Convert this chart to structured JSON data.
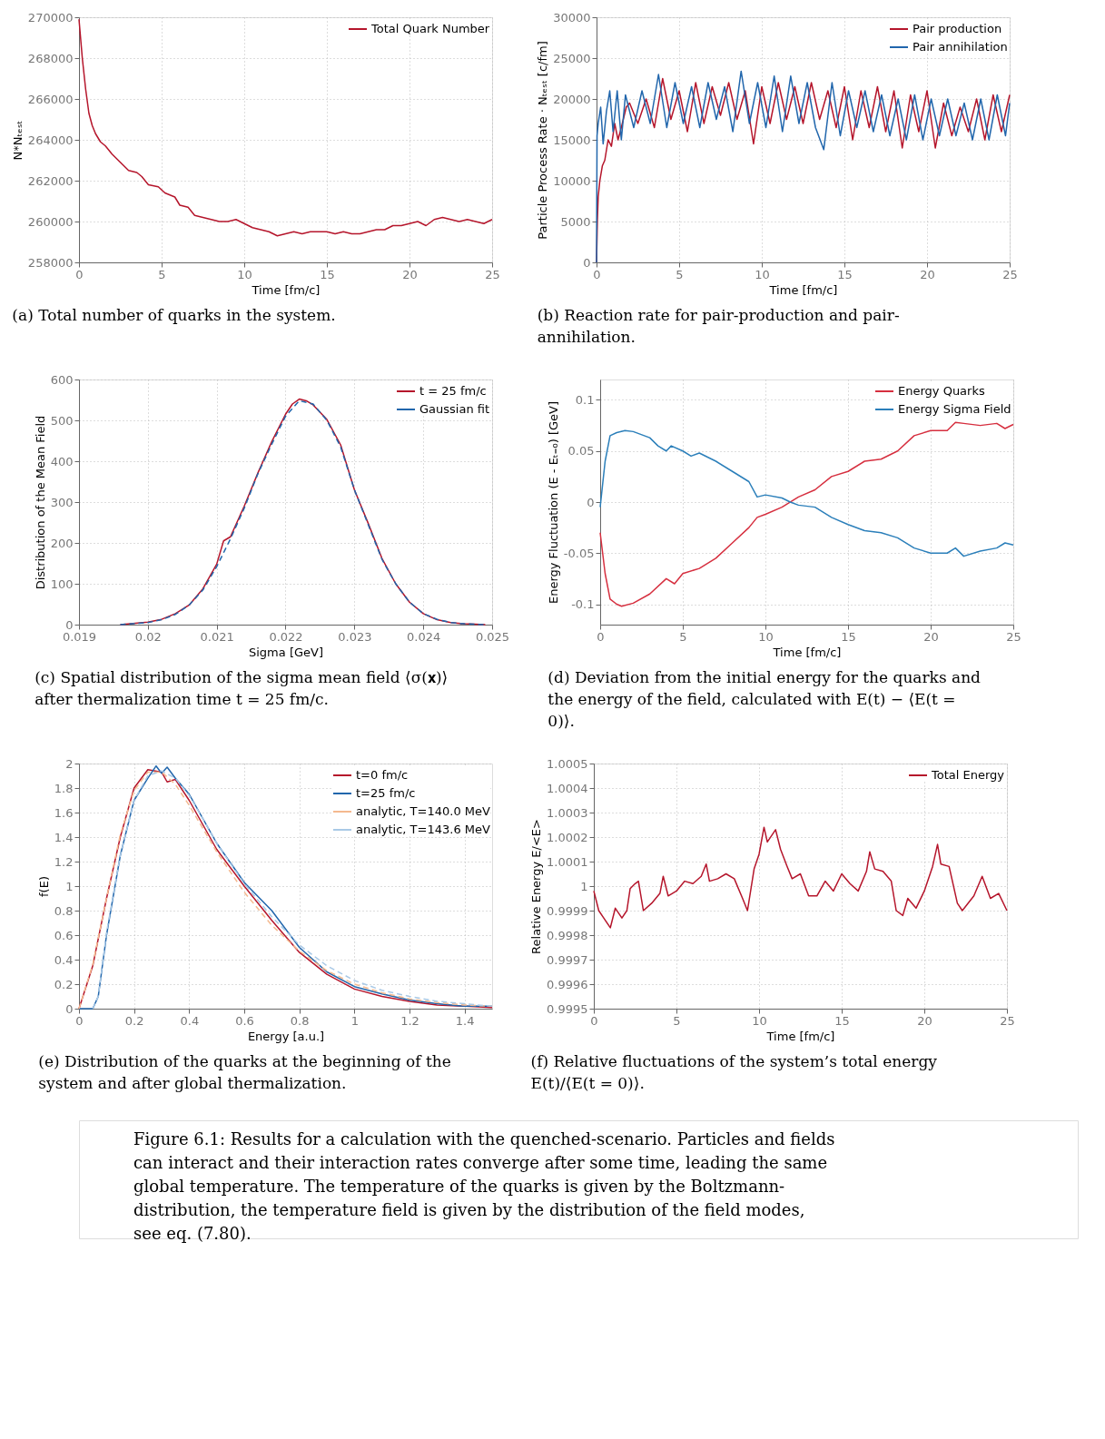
{
  "chart_data": [
    {
      "type": "line",
      "xlabel": "Time [fm/c]",
      "ylabel": "N*Nₜₑₛₜ",
      "xlim": [
        0,
        25
      ],
      "ylim": [
        258000,
        270000
      ],
      "xticks": [
        0,
        5,
        10,
        15,
        20,
        25
      ],
      "yticks": [
        258000,
        260000,
        262000,
        264000,
        266000,
        268000,
        270000
      ],
      "grid": true,
      "legend": "top right",
      "annotations": [
        "(a) Total number of quarks in the system."
      ],
      "series": [
        {
          "name": "Total Quark Number",
          "color": "#b5152b",
          "x": [
            0,
            0.2,
            0.4,
            0.6,
            0.8,
            1,
            1.3,
            1.6,
            2,
            2.5,
            3,
            3.5,
            3.8,
            4.2,
            4.8,
            5.2,
            5.8,
            6.1,
            6.6,
            7,
            7.5,
            8,
            8.5,
            9,
            9.5,
            10,
            10.5,
            11,
            11.5,
            12,
            12.5,
            13,
            13.5,
            14,
            14.5,
            15,
            15.5,
            16,
            16.5,
            17,
            17.5,
            18,
            18.5,
            19,
            19.5,
            20,
            20.5,
            21,
            21.5,
            22,
            22.5,
            23,
            23.5,
            24,
            24.5,
            25
          ],
          "values": [
            269900,
            268000,
            266500,
            265300,
            264700,
            264300,
            263900,
            263700,
            263300,
            262900,
            262500,
            262400,
            262200,
            261800,
            261700,
            261400,
            261200,
            260800,
            260700,
            260300,
            260200,
            260100,
            260000,
            260000,
            260100,
            259900,
            259700,
            259600,
            259500,
            259300,
            259400,
            259500,
            259400,
            259500,
            259500,
            259500,
            259400,
            259500,
            259400,
            259400,
            259500,
            259600,
            259600,
            259800,
            259800,
            259900,
            260000,
            259800,
            260100,
            260200,
            260100,
            260000,
            260100,
            260000,
            259900,
            260100
          ]
        }
      ]
    },
    {
      "type": "line",
      "xlabel": "Time [fm/c]",
      "ylabel": "Particle Process Rate · Nₜₑₛₜ [c/fm]",
      "xlim": [
        0,
        25
      ],
      "ylim": [
        0,
        30000
      ],
      "xticks": [
        0,
        5,
        10,
        15,
        20,
        25
      ],
      "yticks": [
        0,
        5000,
        10000,
        15000,
        20000,
        25000,
        30000
      ],
      "grid": true,
      "legend": "top right",
      "annotations": [
        "(b) Reaction rate for pair-production and pair-annihilation."
      ],
      "series": [
        {
          "name": "Pair production",
          "color": "#b5152b",
          "x": [
            0,
            0.05,
            0.1,
            0.2,
            0.35,
            0.5,
            0.7,
            0.9,
            1.1,
            1.3,
            1.5,
            1.8,
            2,
            2.5,
            3,
            3.5,
            4,
            4.5,
            5,
            5.5,
            6,
            6.5,
            7,
            7.5,
            8,
            8.5,
            9,
            9.5,
            10,
            10.5,
            11,
            11.5,
            12,
            12.5,
            13,
            13.5,
            14,
            14.5,
            15,
            15.5,
            16,
            16.5,
            17,
            17.5,
            18,
            18.5,
            19,
            19.5,
            20,
            20.5,
            21,
            21.5,
            22,
            22.5,
            23,
            23.5,
            24,
            24.5,
            25
          ],
          "values": [
            0,
            5000,
            8000,
            10000,
            11800,
            12500,
            15000,
            14200,
            17000,
            15000,
            16500,
            19000,
            19500,
            17000,
            20000,
            16500,
            22500,
            17500,
            21000,
            16000,
            22000,
            17000,
            21500,
            18000,
            22000,
            17500,
            21000,
            14500,
            21500,
            17000,
            22000,
            17500,
            21500,
            17000,
            22000,
            17500,
            21000,
            16500,
            21500,
            15000,
            21000,
            16500,
            21500,
            16000,
            21000,
            14000,
            20500,
            16000,
            21000,
            14000,
            19500,
            15500,
            19000,
            16000,
            20000,
            15000,
            20500,
            16000,
            20500
          ]
        },
        {
          "name": "Pair annihilation",
          "color": "#2166ac",
          "x": [
            0,
            0.03,
            0.1,
            0.25,
            0.4,
            0.6,
            0.8,
            1,
            1.25,
            1.5,
            1.75,
            2.25,
            2.75,
            3.25,
            3.75,
            4.25,
            4.75,
            5.25,
            5.75,
            6.25,
            6.75,
            7.25,
            7.75,
            8.25,
            8.75,
            9.25,
            9.75,
            10.25,
            10.75,
            11.25,
            11.75,
            12.25,
            12.75,
            13.25,
            13.75,
            14.25,
            14.75,
            15.25,
            15.75,
            16.25,
            16.75,
            17.25,
            17.75,
            18.25,
            18.75,
            19.25,
            19.75,
            20.25,
            20.75,
            21.25,
            21.75,
            22.25,
            22.75,
            23.25,
            23.75,
            24.25,
            24.75,
            25
          ],
          "values": [
            0,
            15500,
            17000,
            19000,
            14500,
            18500,
            21000,
            16000,
            21000,
            15000,
            20500,
            16500,
            21000,
            17000,
            23000,
            16500,
            22000,
            17000,
            21500,
            16500,
            22000,
            17500,
            21500,
            16000,
            23400,
            17000,
            22000,
            16500,
            22800,
            16000,
            22800,
            17000,
            22000,
            16500,
            13800,
            22000,
            15500,
            21000,
            16500,
            21000,
            16000,
            20500,
            15500,
            20000,
            15000,
            20500,
            15000,
            20000,
            15500,
            20000,
            15500,
            19500,
            15000,
            20000,
            15000,
            20500,
            15500,
            19500
          ]
        }
      ]
    },
    {
      "type": "line",
      "xlabel": "Sigma [GeV]",
      "ylabel": "Distribution of the Mean Field",
      "xlim": [
        0.019,
        0.025
      ],
      "ylim": [
        0,
        600
      ],
      "xticks": [
        0.019,
        0.02,
        0.021,
        0.022,
        0.023,
        0.024,
        0.025
      ],
      "yticks": [
        0,
        100,
        200,
        300,
        400,
        500,
        600
      ],
      "grid": true,
      "legend": "top right",
      "annotations": [
        "(c) Spatial distribution of the sigma mean field ⟨σ(𝐱)⟩ after thermalization time t = 25 fm/c."
      ],
      "series": [
        {
          "name": "t = 25 fm/c",
          "color": "#b5152b",
          "line_style": "solid",
          "x": [
            0.0196,
            0.02,
            0.0202,
            0.0204,
            0.0206,
            0.0208,
            0.021,
            0.0211,
            0.0212,
            0.0214,
            0.0216,
            0.0218,
            0.022,
            0.0221,
            0.0222,
            0.0223,
            0.0224,
            0.0226,
            0.0228,
            0.023,
            0.0232,
            0.0234,
            0.0236,
            0.0238,
            0.024,
            0.0242,
            0.0244,
            0.0246,
            0.0249
          ],
          "values": [
            0,
            6,
            13,
            27,
            48,
            88,
            148,
            205,
            215,
            290,
            372,
            448,
            515,
            540,
            552,
            548,
            538,
            502,
            440,
            330,
            248,
            162,
            100,
            55,
            27,
            12,
            5,
            2,
            0
          ]
        },
        {
          "name": "Gaussian fit",
          "color": "#2166ac",
          "line_style": "dashed",
          "x": [
            0.0196,
            0.02,
            0.0202,
            0.0204,
            0.0206,
            0.0208,
            0.021,
            0.0212,
            0.0214,
            0.0216,
            0.0218,
            0.022,
            0.0222,
            0.0224,
            0.0226,
            0.0228,
            0.023,
            0.0232,
            0.0234,
            0.0236,
            0.0238,
            0.024,
            0.0242,
            0.0244,
            0.0246,
            0.0249
          ],
          "values": [
            0,
            5,
            12,
            25,
            48,
            85,
            142,
            210,
            285,
            370,
            442,
            510,
            548,
            540,
            500,
            435,
            330,
            245,
            160,
            100,
            55,
            27,
            13,
            5,
            2,
            0
          ]
        }
      ]
    },
    {
      "type": "line",
      "xlabel": "Time [fm/c]",
      "ylabel": "Energy Fluctuation (E - Eₜ₌₀) [GeV]",
      "xlim": [
        0,
        25
      ],
      "ylim": [
        -0.12,
        0.12
      ],
      "xticks": [
        0,
        5,
        10,
        15,
        20,
        25
      ],
      "yticks": [
        -0.1,
        -0.05,
        0,
        0.05,
        0.1
      ],
      "grid": true,
      "legend": "top right",
      "annotations": [
        "(d) Deviation from the initial energy for the quarks and the energy of the field, calculated with E(t) − ⟨E(t = 0)⟩."
      ],
      "series": [
        {
          "name": "Energy Quarks",
          "color": "#d62f3f",
          "x": [
            0,
            0.3,
            0.6,
            1,
            1.3,
            2,
            3,
            4,
            4.5,
            5,
            6,
            7,
            8,
            9,
            9.5,
            10,
            11,
            12,
            13,
            14,
            15,
            16,
            17,
            18,
            19,
            20,
            21,
            21.5,
            22,
            23,
            24,
            24.5,
            25
          ],
          "values": [
            -0.03,
            -0.07,
            -0.095,
            -0.1,
            -0.102,
            -0.099,
            -0.09,
            -0.075,
            -0.08,
            -0.07,
            -0.065,
            -0.055,
            -0.04,
            -0.025,
            -0.015,
            -0.012,
            -0.005,
            0.005,
            0.012,
            0.025,
            0.03,
            0.04,
            0.042,
            0.05,
            0.065,
            0.07,
            0.07,
            0.078,
            0.077,
            0.075,
            0.077,
            0.072,
            0.076
          ]
        },
        {
          "name": "Energy Sigma Field",
          "color": "#2b7fba",
          "x": [
            0,
            0.3,
            0.6,
            1,
            1.5,
            2,
            3,
            3.5,
            4,
            4.3,
            5,
            5.5,
            6,
            7,
            8,
            9,
            9.5,
            10,
            11,
            11.5,
            12,
            13,
            14,
            15,
            16,
            17,
            18,
            19,
            20,
            21,
            21.5,
            22,
            23,
            24,
            24.5,
            25
          ],
          "values": [
            -0.005,
            0.04,
            0.065,
            0.068,
            0.07,
            0.069,
            0.063,
            0.055,
            0.05,
            0.055,
            0.05,
            0.045,
            0.048,
            0.04,
            0.03,
            0.02,
            0.005,
            0.007,
            0.004,
            0,
            -0.003,
            -0.005,
            -0.015,
            -0.022,
            -0.028,
            -0.03,
            -0.035,
            -0.045,
            -0.05,
            -0.05,
            -0.045,
            -0.053,
            -0.048,
            -0.045,
            -0.04,
            -0.042
          ]
        }
      ]
    },
    {
      "type": "line",
      "xlabel": "Energy [a.u.]",
      "ylabel": "f(E)",
      "xlim": [
        0,
        1.5
      ],
      "ylim": [
        0,
        2
      ],
      "xticks": [
        0,
        0.2,
        0.4,
        0.6,
        0.8,
        1,
        1.2,
        1.4
      ],
      "yticks": [
        0,
        0.2,
        0.4,
        0.6,
        0.8,
        1,
        1.2,
        1.4,
        1.6,
        1.8,
        2
      ],
      "grid": true,
      "legend": "top right",
      "annotations": [
        "(e) Distribution of the quarks at the beginning of the system and after global thermalization."
      ],
      "series": [
        {
          "name": "t=0 fm/c",
          "color": "#b5152b",
          "line_style": "solid",
          "x": [
            0,
            0.05,
            0.1,
            0.15,
            0.2,
            0.25,
            0.3,
            0.32,
            0.35,
            0.4,
            0.45,
            0.5,
            0.6,
            0.7,
            0.8,
            0.9,
            1,
            1.1,
            1.2,
            1.3,
            1.4,
            1.5
          ],
          "values": [
            0,
            0.35,
            0.9,
            1.4,
            1.8,
            1.95,
            1.93,
            1.85,
            1.87,
            1.7,
            1.5,
            1.3,
            1,
            0.72,
            0.46,
            0.28,
            0.16,
            0.1,
            0.06,
            0.03,
            0.02,
            0.01
          ]
        },
        {
          "name": "t=25 fm/c",
          "color": "#2166ac",
          "line_style": "solid",
          "x": [
            0,
            0.05,
            0.07,
            0.1,
            0.15,
            0.2,
            0.25,
            0.28,
            0.3,
            0.32,
            0.35,
            0.4,
            0.45,
            0.5,
            0.6,
            0.7,
            0.8,
            0.9,
            1,
            1.1,
            1.2,
            1.3,
            1.4,
            1.5
          ],
          "values": [
            0,
            0,
            0.1,
            0.6,
            1.25,
            1.7,
            1.88,
            1.98,
            1.92,
            1.97,
            1.88,
            1.75,
            1.55,
            1.35,
            1.03,
            0.8,
            0.5,
            0.3,
            0.18,
            0.12,
            0.07,
            0.04,
            0.02,
            0.02
          ]
        },
        {
          "name": "analytic, T=140.0 MeV",
          "color": "#f4b98f",
          "line_style": "dashed",
          "x": [
            0,
            0.05,
            0.1,
            0.15,
            0.2,
            0.25,
            0.3,
            0.35,
            0.4,
            0.45,
            0.5,
            0.6,
            0.7,
            0.8,
            0.9,
            1,
            1.1,
            1.2,
            1.3,
            1.4,
            1.5
          ],
          "values": [
            0,
            0.36,
            0.9,
            1.42,
            1.78,
            1.93,
            1.93,
            1.83,
            1.66,
            1.47,
            1.28,
            0.95,
            0.68,
            0.47,
            0.31,
            0.2,
            0.13,
            0.08,
            0.05,
            0.03,
            0.02
          ]
        },
        {
          "name": "analytic, T=143.6 MeV",
          "color": "#a9c9e6",
          "line_style": "dashed",
          "x": [
            0.05,
            0.07,
            0.1,
            0.15,
            0.2,
            0.25,
            0.3,
            0.35,
            0.4,
            0.45,
            0.5,
            0.6,
            0.7,
            0.8,
            0.9,
            1,
            1.1,
            1.2,
            1.3,
            1.4,
            1.5
          ],
          "values": [
            0,
            0.1,
            0.62,
            1.25,
            1.7,
            1.9,
            1.94,
            1.88,
            1.74,
            1.55,
            1.35,
            1.02,
            0.75,
            0.52,
            0.35,
            0.23,
            0.15,
            0.1,
            0.06,
            0.04,
            0.02
          ]
        }
      ]
    },
    {
      "type": "line",
      "xlabel": "Time [fm/c]",
      "ylabel": "Relative Energy E/<E>",
      "xlim": [
        0,
        25
      ],
      "ylim": [
        0.9995,
        1.0005
      ],
      "xticks": [
        0,
        5,
        10,
        15,
        20,
        25
      ],
      "yticks": [
        0.9995,
        0.9996,
        0.9997,
        0.9998,
        0.9999,
        1,
        1.0001,
        1.0002,
        1.0003,
        1.0004,
        1.0005
      ],
      "grid": true,
      "legend": "top right",
      "annotations": [
        "(f) Relative fluctuations of the system’s total energy E(t)/⟨E(t = 0)⟩."
      ],
      "series": [
        {
          "name": "Total Energy",
          "color": "#b5152b",
          "x": [
            0,
            0.3,
            0.6,
            1,
            1.3,
            1.7,
            2,
            2.2,
            2.5,
            2.7,
            3,
            3.5,
            4,
            4.2,
            4.5,
            5,
            5.5,
            6,
            6.5,
            6.8,
            7,
            7.5,
            8,
            8.5,
            9,
            9.3,
            9.7,
            10,
            10.3,
            10.5,
            11,
            11.3,
            11.7,
            12,
            12.5,
            13,
            13.5,
            14,
            14.5,
            15,
            15.5,
            16,
            16.5,
            16.7,
            17,
            17.5,
            18,
            18.3,
            18.7,
            19,
            19.5,
            20,
            20.5,
            20.8,
            21,
            21.5,
            22,
            22.3,
            23,
            23.5,
            24,
            24.5,
            25
          ],
          "values": [
            0.99998,
            0.9999,
            0.99987,
            0.99983,
            0.99991,
            0.99987,
            0.9999,
            0.99999,
            1.00001,
            1.00002,
            0.9999,
            0.99993,
            0.99997,
            1.00004,
            0.99996,
            0.99998,
            1.00002,
            1.00001,
            1.00004,
            1.00009,
            1.00002,
            1.00003,
            1.00005,
            1.00003,
            0.99995,
            0.9999,
            1.00007,
            1.00013,
            1.00024,
            1.00018,
            1.00023,
            1.00015,
            1.00008,
            1.00003,
            1.00005,
            0.99996,
            0.99996,
            1.00002,
            0.99998,
            1.00005,
            1.00001,
            0.99998,
            1.00006,
            1.00014,
            1.00007,
            1.00006,
            1.00002,
            0.9999,
            0.99988,
            0.99995,
            0.99991,
            0.99998,
            1.00008,
            1.00017,
            1.00009,
            1.00008,
            0.99993,
            0.9999,
            0.99996,
            1.00004,
            0.99995,
            0.99997,
            0.9999
          ]
        }
      ]
    },
    {
      "type": "other",
      "annotations": [
        "Figure 6.1: Results for a calculation with the quenched-scenario. Particles and fields can interact and their interaction rates converge after some time, leading the same global temperature. The temperature of the quarks is given by the Boltzmann-distribution, the temperature field is given by the distribution of the field modes, see eq. (7.80)."
      ]
    }
  ]
}
